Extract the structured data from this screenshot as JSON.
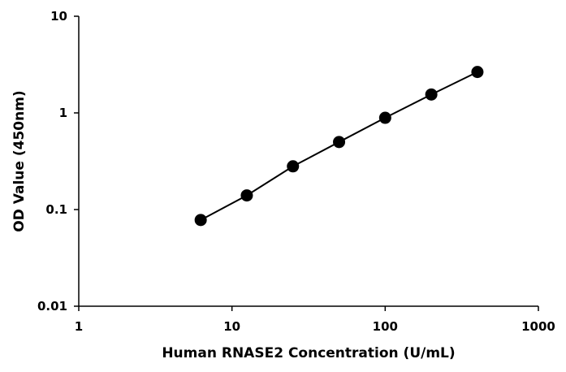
{
  "chart_data": {
    "type": "scatter",
    "title": "",
    "xlabel": "Human RNASE2 Concentration  (U/mL)",
    "ylabel": "OD Value (450nm)",
    "x_scale": "log",
    "y_scale": "log",
    "xlim": [
      1,
      1000
    ],
    "ylim": [
      0.01,
      10
    ],
    "x_ticks": [
      {
        "value": 1,
        "label": "1"
      },
      {
        "value": 10,
        "label": "10"
      },
      {
        "value": 100,
        "label": "100"
      },
      {
        "value": 1000,
        "label": "1000"
      }
    ],
    "y_ticks": [
      {
        "value": 0.01,
        "label": "0.01"
      },
      {
        "value": 0.1,
        "label": "0.1"
      },
      {
        "value": 1,
        "label": "1"
      },
      {
        "value": 10,
        "label": "10"
      }
    ],
    "grid": false,
    "legend": "none",
    "series": [
      {
        "connect_points": true,
        "color": "#000000",
        "marker": "circle",
        "x": [
          6.25,
          12.5,
          25,
          50,
          100,
          200,
          400
        ],
        "y": [
          0.078,
          0.14,
          0.28,
          0.5,
          0.89,
          1.55,
          2.65
        ]
      }
    ]
  }
}
